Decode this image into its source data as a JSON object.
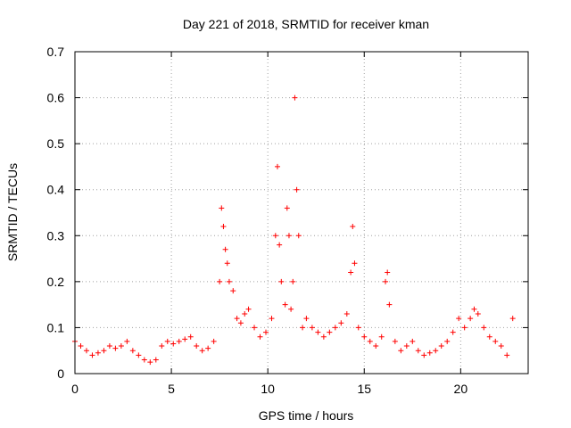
{
  "chart_data": {
    "type": "scatter",
    "title": "Day 221 of 2018, SRMTID for receiver kman",
    "xlabel": "GPS time / hours",
    "ylabel": "SRMTID / TECUs",
    "xlim": [
      0,
      23.5
    ],
    "ylim": [
      0,
      0.7
    ],
    "xticks": [
      0,
      5,
      10,
      15,
      20
    ],
    "yticks": [
      0,
      0.1,
      0.2,
      0.3,
      0.4,
      0.5,
      0.6,
      0.7
    ],
    "grid": true,
    "marker": "+",
    "color": "#ff0000",
    "series": [
      {
        "name": "SRMTID",
        "x": [
          0.0,
          0.3,
          0.6,
          0.9,
          1.2,
          1.5,
          1.8,
          2.1,
          2.4,
          2.7,
          3.0,
          3.3,
          3.6,
          3.9,
          4.2,
          4.5,
          4.8,
          5.1,
          5.4,
          5.7,
          6.0,
          6.3,
          6.6,
          6.9,
          7.2,
          7.5,
          7.6,
          7.7,
          7.8,
          7.9,
          8.0,
          8.2,
          8.4,
          8.6,
          8.8,
          9.0,
          9.3,
          9.6,
          9.9,
          10.2,
          10.4,
          10.5,
          10.6,
          10.7,
          10.9,
          11.0,
          11.1,
          11.2,
          11.3,
          11.4,
          11.5,
          11.6,
          11.8,
          12.0,
          12.3,
          12.6,
          12.9,
          13.2,
          13.5,
          13.8,
          14.1,
          14.3,
          14.4,
          14.5,
          14.7,
          15.0,
          15.3,
          15.6,
          15.9,
          16.1,
          16.2,
          16.3,
          16.6,
          16.9,
          17.2,
          17.5,
          17.8,
          18.1,
          18.4,
          18.7,
          19.0,
          19.3,
          19.6,
          19.9,
          20.2,
          20.5,
          20.7,
          20.9,
          21.2,
          21.5,
          21.8,
          22.1,
          22.4,
          22.7
        ],
        "y": [
          0.07,
          0.06,
          0.05,
          0.04,
          0.045,
          0.05,
          0.06,
          0.055,
          0.06,
          0.07,
          0.05,
          0.04,
          0.03,
          0.025,
          0.03,
          0.06,
          0.07,
          0.065,
          0.07,
          0.075,
          0.08,
          0.06,
          0.05,
          0.055,
          0.07,
          0.2,
          0.36,
          0.32,
          0.27,
          0.24,
          0.2,
          0.18,
          0.12,
          0.11,
          0.13,
          0.14,
          0.1,
          0.08,
          0.09,
          0.12,
          0.3,
          0.45,
          0.28,
          0.2,
          0.15,
          0.36,
          0.3,
          0.14,
          0.2,
          0.6,
          0.4,
          0.3,
          0.1,
          0.12,
          0.1,
          0.09,
          0.08,
          0.09,
          0.1,
          0.11,
          0.13,
          0.22,
          0.32,
          0.24,
          0.1,
          0.08,
          0.07,
          0.06,
          0.08,
          0.2,
          0.22,
          0.15,
          0.07,
          0.05,
          0.06,
          0.07,
          0.05,
          0.04,
          0.045,
          0.05,
          0.06,
          0.07,
          0.09,
          0.12,
          0.1,
          0.12,
          0.14,
          0.13,
          0.1,
          0.08,
          0.07,
          0.06,
          0.04,
          0.12
        ]
      }
    ]
  }
}
